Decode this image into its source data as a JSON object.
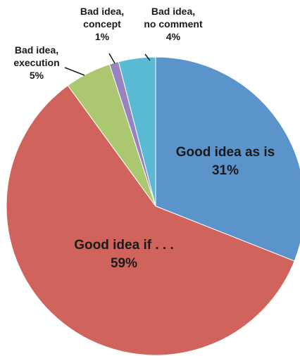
{
  "chart_data": {
    "type": "pie",
    "title": "",
    "start_angle_deg": 0,
    "direction": "clockwise",
    "slices": [
      {
        "lines": [
          "Good idea as is"
        ],
        "pct_label": "31%",
        "value": 31,
        "color": "#5b93cb",
        "label_position": "inside"
      },
      {
        "lines": [
          "Good idea if . . ."
        ],
        "pct_label": "59%",
        "value": 59,
        "color": "#d0645c",
        "label_position": "inside"
      },
      {
        "lines": [
          "Bad idea,",
          "execution"
        ],
        "pct_label": "5%",
        "value": 5,
        "color": "#abc870",
        "label_position": "outside"
      },
      {
        "lines": [
          "Bad idea,",
          "concept"
        ],
        "pct_label": "1%",
        "value": 1,
        "color": "#9a82c1",
        "label_position": "outside"
      },
      {
        "lines": [
          "Bad idea,",
          "no comment"
        ],
        "pct_label": "4%",
        "value": 4,
        "color": "#5bbad3",
        "label_position": "outside"
      }
    ]
  }
}
